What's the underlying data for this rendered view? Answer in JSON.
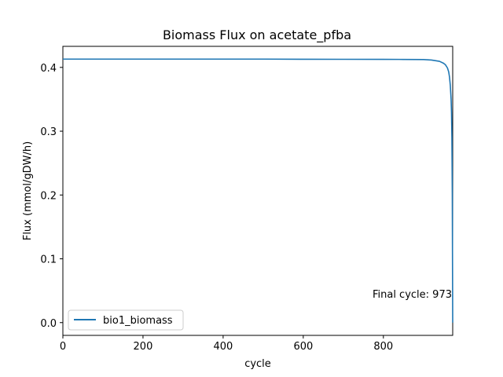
{
  "chart_data": {
    "type": "line",
    "title": "Biomass Flux on acetate_pfba",
    "xlabel": "cycle",
    "ylabel": "Flux (mmol/gDW/h)",
    "xlim": [
      0,
      973
    ],
    "ylim": [
      -0.02,
      0.433
    ],
    "xticks": [
      0,
      200,
      400,
      600,
      800
    ],
    "yticks": [
      0.0,
      0.1,
      0.2,
      0.3,
      0.4
    ],
    "grid": false,
    "legend_placement": "lower-left",
    "annotation": "Final cycle: 973",
    "series": [
      {
        "name": "bio1_biomass",
        "color": "#1f77b4",
        "x": [
          0,
          100,
          200,
          300,
          400,
          500,
          600,
          700,
          800,
          850,
          900,
          920,
          940,
          950,
          955,
          960,
          963,
          965,
          967,
          969,
          970,
          971,
          972,
          973
        ],
        "y": [
          0.413,
          0.413,
          0.413,
          0.413,
          0.413,
          0.413,
          0.4128,
          0.4127,
          0.4126,
          0.4125,
          0.4123,
          0.4115,
          0.4095,
          0.4065,
          0.404,
          0.399,
          0.393,
          0.385,
          0.372,
          0.35,
          0.33,
          0.29,
          0.2,
          0.0
        ]
      }
    ]
  }
}
